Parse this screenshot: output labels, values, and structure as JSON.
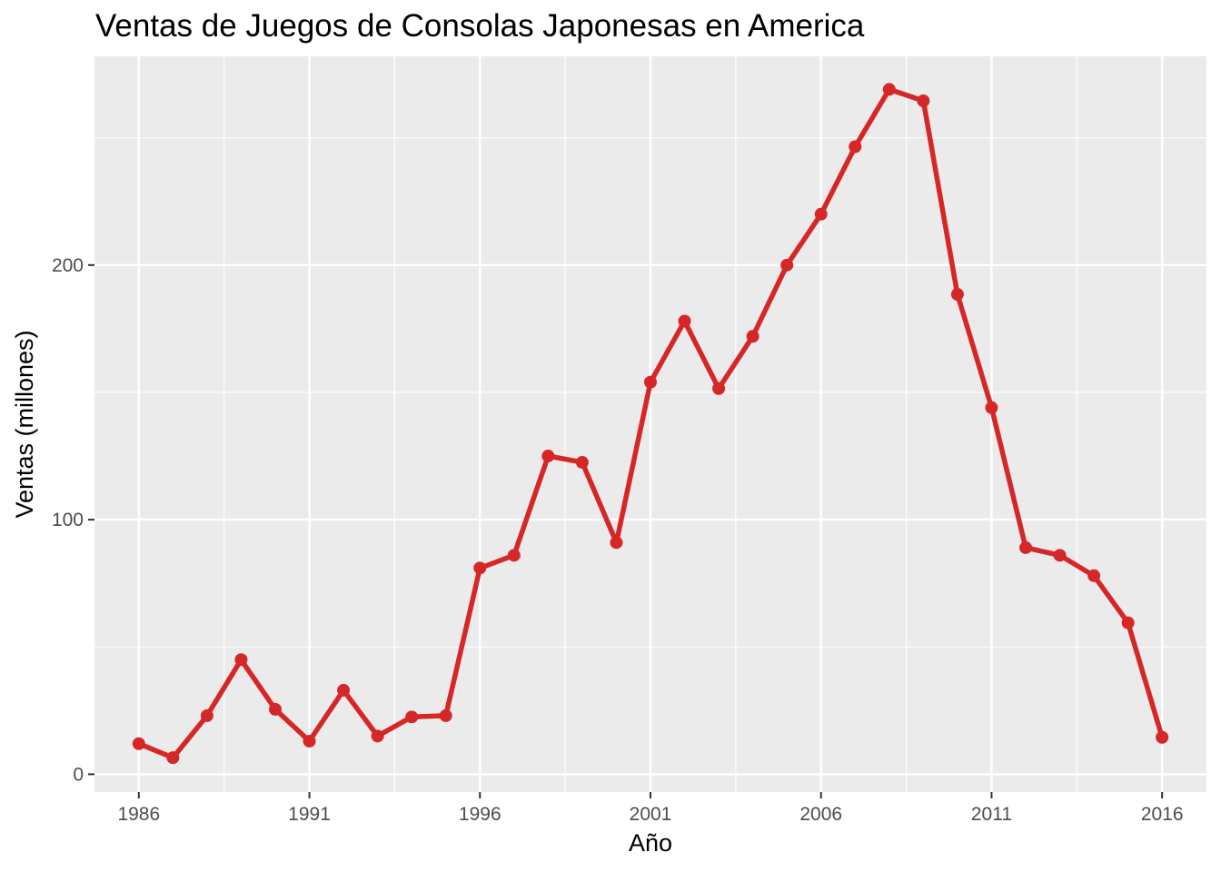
{
  "chart_data": {
    "type": "line",
    "title": "Ventas de Juegos de Consolas Japonesas en America",
    "xlabel": "Año",
    "ylabel": "Ventas (millones)",
    "xlim": [
      1984.7,
      2017.3
    ],
    "ylim": [
      -7,
      282
    ],
    "x_ticks": [
      1986,
      1991,
      1996,
      2001,
      2006,
      2011,
      2016
    ],
    "y_ticks": [
      0,
      100,
      200
    ],
    "grid": true,
    "legend": "none",
    "colors": {
      "line": "#d62728",
      "panel": "#ebebeb",
      "grid": "#ffffff"
    },
    "x": [
      1986,
      1987,
      1988,
      1989,
      1990,
      1991,
      1992,
      1993,
      1994,
      1995,
      1996,
      1997,
      1998,
      1999,
      2000,
      2001,
      2002,
      2003,
      2004,
      2005,
      2006,
      2007,
      2008,
      2009,
      2010,
      2011,
      2012,
      2013,
      2014,
      2015,
      2016
    ],
    "values": [
      12,
      6.5,
      23,
      45,
      25.5,
      13,
      33,
      15,
      22.5,
      23,
      81,
      86,
      125,
      122.5,
      91,
      154,
      178,
      151.5,
      172,
      200,
      220,
      246.5,
      269,
      264.5,
      188.5,
      144,
      89,
      86,
      78,
      59.5,
      14.5
    ]
  }
}
